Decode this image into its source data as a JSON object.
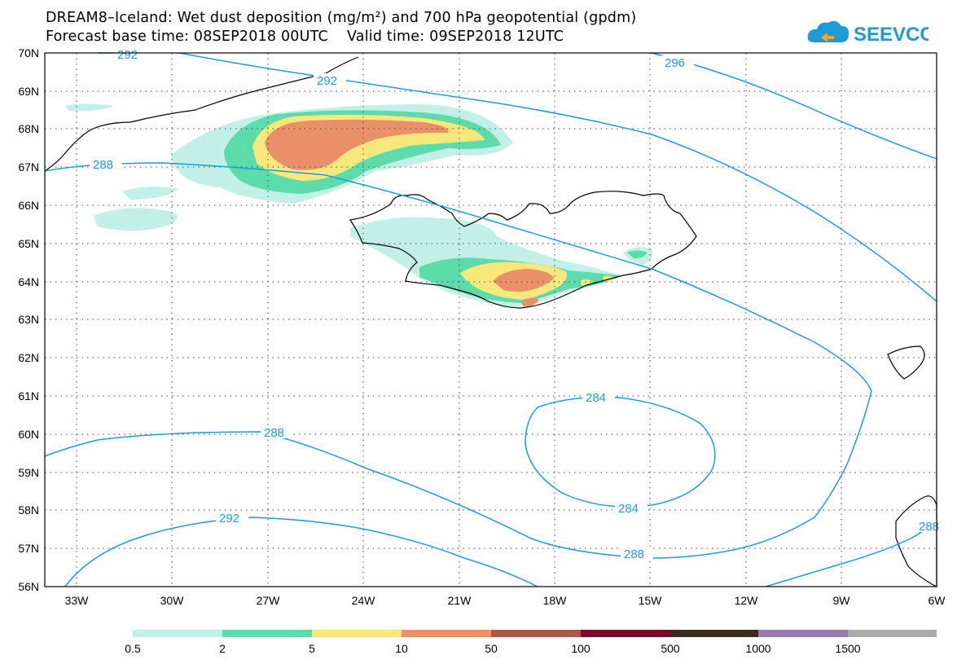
{
  "header": {
    "title_line1": "DREAM8–Iceland: Wet dust deposition (mg/m²) and 700 hPa geopotential (gpdm)",
    "title_line2": "Forecast base time: 08SEP2018 00UTC    Valid time: 09SEP2018 12UTC",
    "logo_text": "SEEVCCC"
  },
  "map": {
    "lon_range": [
      -33.5,
      -6
    ],
    "lat_range": [
      56,
      70
    ],
    "lat_labels": [
      "70N",
      "69N",
      "68N",
      "67N",
      "66N",
      "65N",
      "64N",
      "63N",
      "62N",
      "61N",
      "60N",
      "59N",
      "58N",
      "57N",
      "56N"
    ],
    "lon_labels": [
      "33W",
      "30W",
      "27W",
      "24W",
      "21W",
      "18W",
      "15W",
      "12W",
      "9W",
      "6W"
    ],
    "grid": "dotted",
    "contour_color": "#1a9be6",
    "contour_labels": [
      "292",
      "292",
      "296",
      "288",
      "288",
      "284",
      "284",
      "292",
      "288",
      "288"
    ]
  },
  "legend": {
    "labels": [
      "0.5",
      "2",
      "5",
      "10",
      "50",
      "100",
      "500",
      "1000",
      "1500"
    ],
    "colors": [
      "#c2f0e6",
      "#5ddcab",
      "#f6e87a",
      "#e9906a",
      "#a85a4d",
      "#7a0a28",
      "#3b2b20",
      "#9a7aaa",
      "#aaaaaa"
    ]
  }
}
